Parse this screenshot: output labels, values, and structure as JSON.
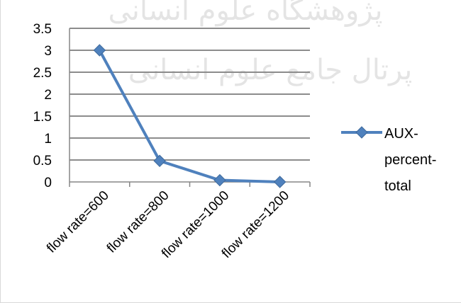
{
  "watermark": {
    "line1": "پرتال جامع علوم انسانی",
    "line2": "ﭘﮋﻭﻫﺸﮕﺎﻩ ﻋﻠﻮﻡ ﺍﻧﺴﺎﻧﻰ"
  },
  "chart_data": {
    "type": "line",
    "categories": [
      "flow rate=600",
      "flow rate=800",
      "flow rate=1000",
      "flow rate=1200"
    ],
    "series": [
      {
        "name": "AUX-percent-total",
        "values": [
          3.0,
          0.48,
          0.04,
          0.0
        ],
        "color": "#4f81bd",
        "marker": "diamond"
      }
    ],
    "legend_lines": [
      "AUX-",
      "percent-",
      "total"
    ],
    "y_ticks": [
      "3.5",
      "3",
      "2.5",
      "2",
      "1.5",
      "1",
      "0.5",
      "0"
    ],
    "ylim": [
      0,
      3.5
    ],
    "y_step": 0.5,
    "grid": true,
    "legend_position": "right",
    "title": "",
    "xlabel": "",
    "ylabel": ""
  }
}
